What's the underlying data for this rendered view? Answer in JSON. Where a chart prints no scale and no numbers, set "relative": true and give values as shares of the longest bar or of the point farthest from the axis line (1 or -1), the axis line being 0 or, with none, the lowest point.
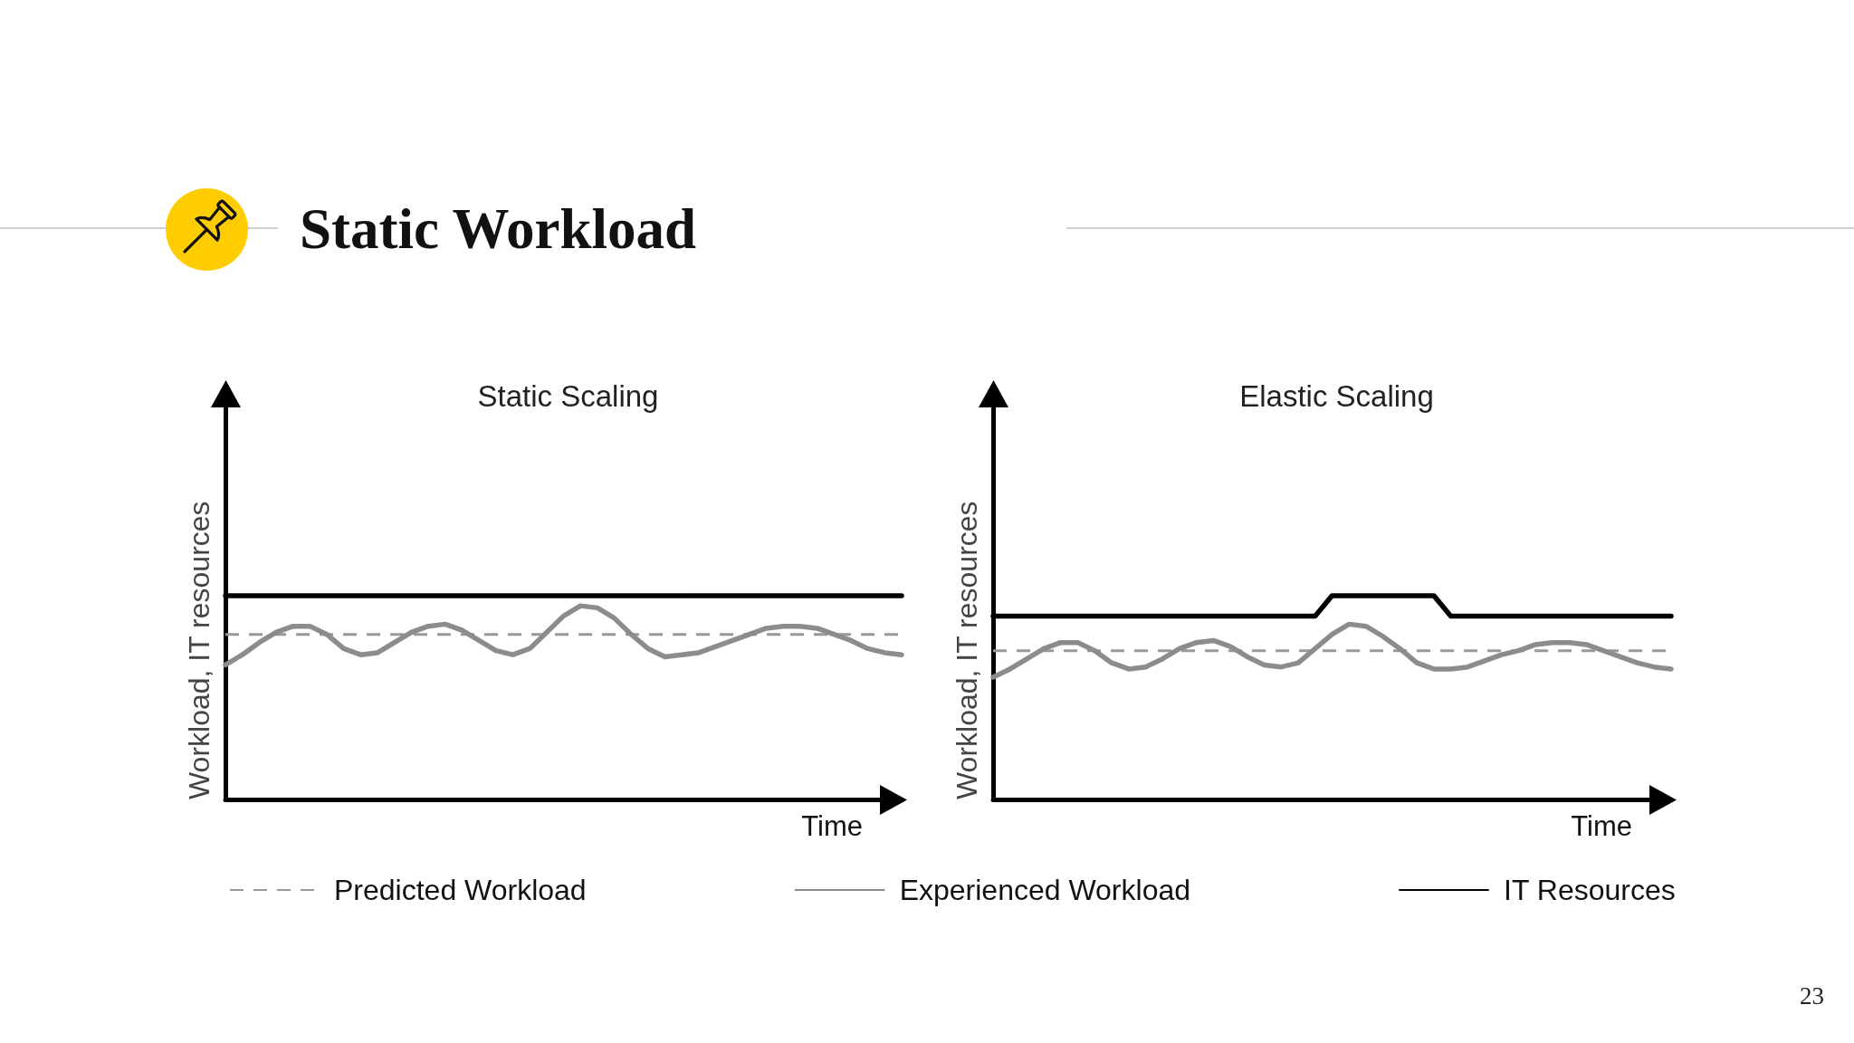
{
  "chart_data": [
    {
      "type": "other",
      "title": "Static Workload",
      "annotations": [
        "23"
      ]
    },
    {
      "type": "line",
      "title": "Static Scaling",
      "xlabel": "Time",
      "ylabel": "Workload, IT resources",
      "relative": true,
      "legend": "bottom",
      "marker": "none",
      "line_style": "solid",
      "categories": [
        null,
        null,
        null,
        null,
        null,
        null,
        null,
        null,
        null,
        null,
        null,
        null,
        null,
        null,
        null,
        null,
        null,
        null,
        null,
        null,
        null,
        null,
        null,
        null,
        null,
        null,
        null,
        null,
        null,
        null,
        null,
        null,
        null,
        null,
        null,
        null,
        null,
        null,
        null,
        null,
        null
      ],
      "series": [
        {
          "name": "Predicted Workload",
          "color": "#999999",
          "line_style": "dashed",
          "values": [
            0.81,
            0.81,
            0.81,
            0.81,
            0.81,
            0.81,
            0.81,
            0.81,
            0.81,
            0.81,
            0.81,
            0.81,
            0.81,
            0.81,
            0.81,
            0.81,
            0.81,
            0.81,
            0.81,
            0.81,
            0.81,
            0.81,
            0.81,
            0.81,
            0.81,
            0.81,
            0.81,
            0.81,
            0.81,
            0.81,
            0.81,
            0.81,
            0.81,
            0.81,
            0.81,
            0.81,
            0.81,
            0.81,
            0.81,
            0.81,
            0.81
          ]
        },
        {
          "name": "Experienced Workload",
          "color": "#8c8c8c",
          "values": [
            0.66,
            0.71,
            0.77,
            0.82,
            0.85,
            0.85,
            0.81,
            0.74,
            0.71,
            0.72,
            0.77,
            0.82,
            0.85,
            0.86,
            0.83,
            0.78,
            0.73,
            0.71,
            0.74,
            0.82,
            0.9,
            0.95,
            0.94,
            0.89,
            0.81,
            0.74,
            0.7,
            0.71,
            0.72,
            0.75,
            0.78,
            0.81,
            0.84,
            0.85,
            0.85,
            0.84,
            0.81,
            0.78,
            0.74,
            0.72,
            0.71
          ]
        },
        {
          "name": "IT Resources",
          "color": "#000000",
          "values": [
            1,
            1,
            1,
            1,
            1,
            1,
            1,
            1,
            1,
            1,
            1,
            1,
            1,
            1,
            1,
            1,
            1,
            1,
            1,
            1,
            1,
            1,
            1,
            1,
            1,
            1,
            1,
            1,
            1,
            1,
            1,
            1,
            1,
            1,
            1,
            1,
            1,
            1,
            1,
            1,
            1
          ]
        }
      ]
    },
    {
      "type": "line",
      "title": "Elastic Scaling",
      "xlabel": "Time",
      "ylabel": "Workload, IT resources",
      "relative": true,
      "marker": "none",
      "line_style": "solid",
      "categories": [
        null,
        null,
        null,
        null,
        null,
        null,
        null,
        null,
        null,
        null,
        null,
        null,
        null,
        null,
        null,
        null,
        null,
        null,
        null,
        null,
        null,
        null,
        null,
        null,
        null,
        null,
        null,
        null,
        null,
        null,
        null,
        null,
        null,
        null,
        null,
        null,
        null,
        null,
        null,
        null,
        null
      ],
      "series": [
        {
          "color": "#999999",
          "line_style": "dashed",
          "values": [
            0.73,
            0.73,
            0.73,
            0.73,
            0.73,
            0.73,
            0.73,
            0.73,
            0.73,
            0.73,
            0.73,
            0.73,
            0.73,
            0.73,
            0.73,
            0.73,
            0.73,
            0.73,
            0.73,
            0.73,
            0.73,
            0.73,
            0.73,
            0.73,
            0.73,
            0.73,
            0.73,
            0.73,
            0.73,
            0.73,
            0.73,
            0.73,
            0.73,
            0.73,
            0.73,
            0.73,
            0.73,
            0.73,
            0.73,
            0.73,
            0.73
          ]
        },
        {
          "color": "#8c8c8c",
          "values": [
            0.6,
            0.64,
            0.69,
            0.74,
            0.77,
            0.77,
            0.73,
            0.67,
            0.64,
            0.65,
            0.69,
            0.74,
            0.77,
            0.78,
            0.75,
            0.7,
            0.66,
            0.65,
            0.67,
            0.74,
            0.81,
            0.86,
            0.85,
            0.8,
            0.74,
            0.67,
            0.64,
            0.64,
            0.65,
            0.68,
            0.71,
            0.73,
            0.76,
            0.77,
            0.77,
            0.76,
            0.73,
            0.7,
            0.67,
            0.65,
            0.64
          ]
        },
        {
          "color": "#000000",
          "values": [
            0.9,
            0.9,
            0.9,
            0.9,
            0.9,
            0.9,
            0.9,
            0.9,
            0.9,
            0.9,
            0.9,
            0.9,
            0.9,
            0.9,
            0.9,
            0.9,
            0.9,
            0.9,
            0.9,
            0.9,
            1,
            1,
            1,
            1,
            1,
            1,
            1,
            0.9,
            0.9,
            0.9,
            0.9,
            0.9,
            0.9,
            0.9,
            0.9,
            0.9,
            0.9,
            0.9,
            0.9,
            0.9,
            0.9
          ]
        }
      ]
    }
  ]
}
